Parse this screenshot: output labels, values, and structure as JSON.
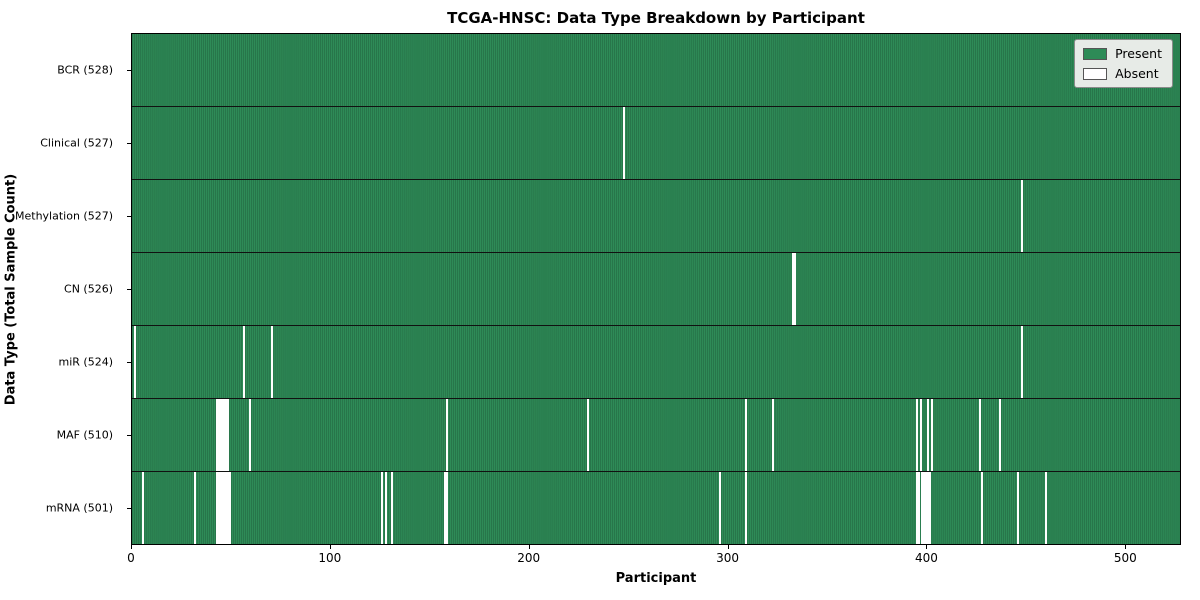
{
  "chart_data": {
    "type": "heatmap",
    "title": "TCGA-HNSC: Data Type Breakdown by Participant",
    "xlabel": "Participant",
    "ylabel": "Data Type (Total Sample Count)",
    "x_ticks": [
      0,
      100,
      200,
      300,
      400,
      500
    ],
    "x_range": [
      0,
      528
    ],
    "n_participants": 528,
    "legend": [
      {
        "label": "Present",
        "color": "#2e8b57"
      },
      {
        "label": "Absent",
        "color": "#ffffff"
      }
    ],
    "colors": {
      "present": "#2e8b57",
      "absent": "#ffffff",
      "bar_edge": "rgba(0,0,0,0.30)",
      "legend_bg": "#e7ebe7"
    },
    "rows": [
      {
        "label": "BCR (528)",
        "total": 528,
        "absent": []
      },
      {
        "label": "Clinical (527)",
        "total": 527,
        "absent": [
          247
        ]
      },
      {
        "label": "Methylation (527)",
        "total": 527,
        "absent": [
          447
        ]
      },
      {
        "label": "CN (526)",
        "total": 526,
        "absent": [
          332,
          333
        ]
      },
      {
        "label": "miR (524)",
        "total": 524,
        "absent": [
          1,
          56,
          70,
          447
        ]
      },
      {
        "label": "MAF (510)",
        "total": 510,
        "absent": [
          42,
          43,
          44,
          45,
          46,
          47,
          48,
          59,
          158,
          229,
          308,
          322,
          394,
          396,
          400,
          402,
          426,
          436
        ]
      },
      {
        "label": "mRNA (501)",
        "total": 501,
        "absent": [
          5,
          31,
          42,
          43,
          44,
          45,
          46,
          47,
          48,
          49,
          125,
          127,
          130,
          157,
          158,
          295,
          308,
          394,
          395,
          397,
          398,
          399,
          400,
          401,
          427,
          445,
          459
        ]
      }
    ]
  }
}
